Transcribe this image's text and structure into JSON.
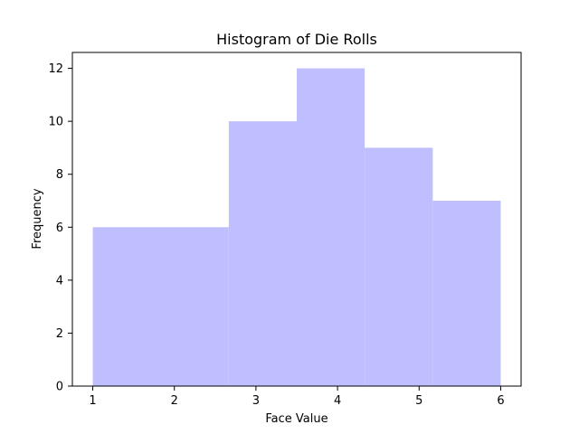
{
  "chart_data": {
    "type": "bar",
    "title": "Histogram of Die Rolls",
    "xlabel": "Face Value",
    "ylabel": "Frequency",
    "bins": [
      {
        "start": 1.0,
        "end": 2.667,
        "count": 6
      },
      {
        "start": 2.667,
        "end": 3.5,
        "count": 10
      },
      {
        "start": 3.5,
        "end": 4.333,
        "count": 12
      },
      {
        "start": 4.333,
        "end": 5.167,
        "count": 9
      },
      {
        "start": 5.167,
        "end": 6.0,
        "count": 7
      }
    ],
    "xlim": [
      0.75,
      6.25
    ],
    "ylim": [
      0,
      12.6
    ],
    "xticks": [
      "1",
      "2",
      "3",
      "4",
      "5",
      "6"
    ],
    "yticks": [
      "0",
      "2",
      "4",
      "6",
      "8",
      "10",
      "12"
    ],
    "bar_color": "#bfbfff",
    "grid": false,
    "legend": false
  }
}
